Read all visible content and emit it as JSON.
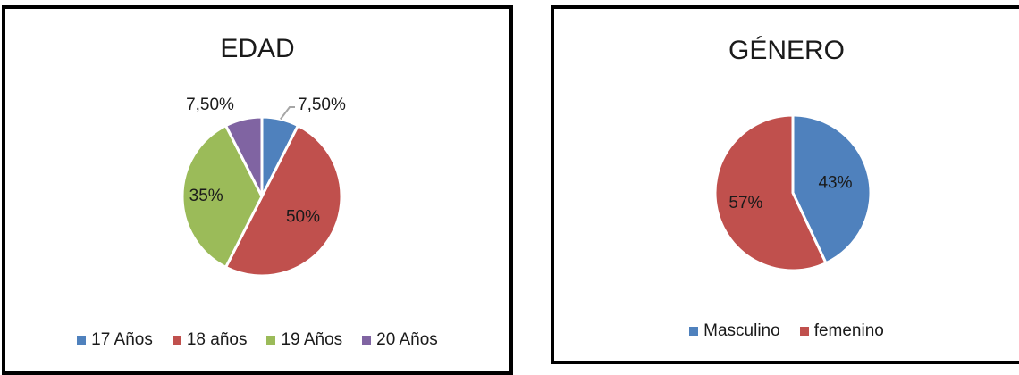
{
  "chart_data": [
    {
      "type": "pie",
      "title": "EDAD",
      "categories": [
        "17 Años",
        "18 años",
        "19 Años",
        "20 Años"
      ],
      "values": [
        7.5,
        50,
        35,
        7.5
      ],
      "labels": [
        "7,50%",
        "50%",
        "35%",
        "7,50%"
      ],
      "colors": [
        "#4f81bd",
        "#c0504d",
        "#9bbb59",
        "#8064a2"
      ],
      "legend_position": "bottom"
    },
    {
      "type": "pie",
      "title": "GÉNERO",
      "categories": [
        "Masculino",
        "femenino"
      ],
      "values": [
        43,
        57
      ],
      "labels": [
        "43%",
        "57%"
      ],
      "colors": [
        "#4f81bd",
        "#c0504d"
      ],
      "legend_position": "bottom"
    }
  ]
}
